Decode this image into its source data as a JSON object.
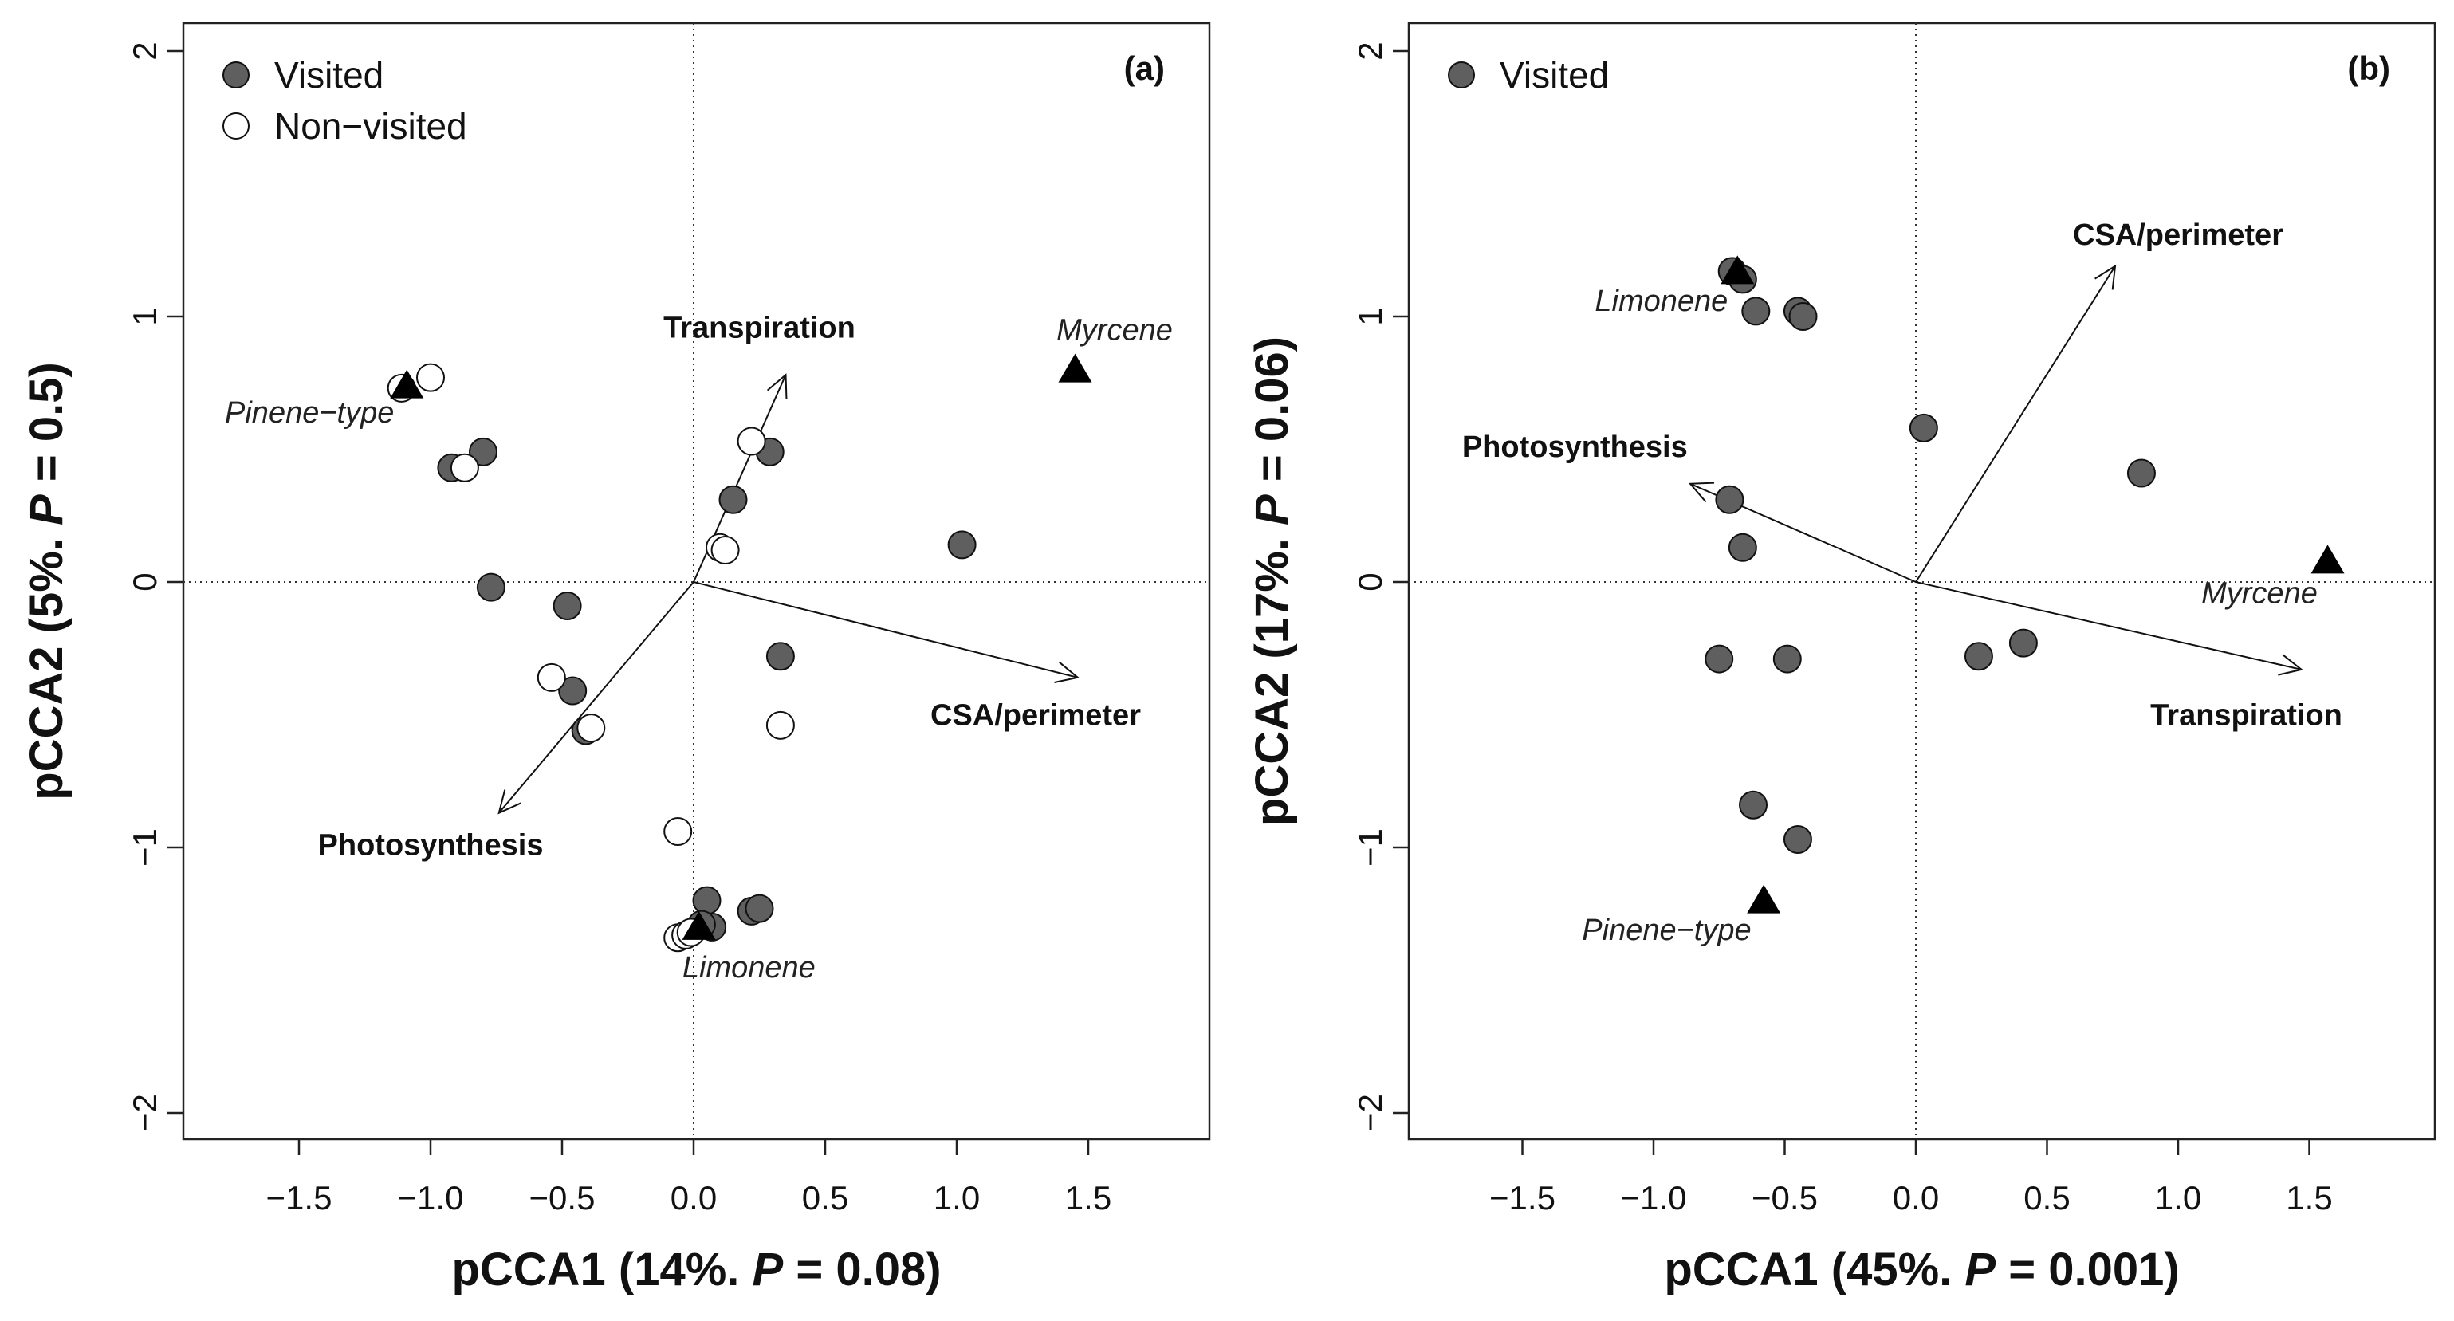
{
  "chart_data": [
    {
      "type": "scatter",
      "panel_label": "(a)",
      "xlabel_prefix": "pCCA1 (14%. ",
      "xlabel_p": "P",
      "xlabel_suffix": " = 0.08)",
      "ylabel_prefix": "pCCA2 (5%. ",
      "ylabel_p": "P",
      "ylabel_suffix": " = 0.5)",
      "xlim": [
        -1.95,
        1.95
      ],
      "ylim": [
        -2.1,
        2.1
      ],
      "xticks": [
        "-1.5",
        "-1.0",
        "-0.5",
        "0.0",
        "0.5",
        "1.0",
        "1.5"
      ],
      "xtick_values": [
        -1.5,
        -1.0,
        -0.5,
        0,
        0.5,
        1.0,
        1.5
      ],
      "yticks": [
        "-2",
        "-1",
        "0",
        "1",
        "2"
      ],
      "ytick_values": [
        -2,
        -1,
        0,
        1,
        2
      ],
      "legend": [
        {
          "label": "Visited",
          "fill": "#5f5f5f"
        },
        {
          "label": "Non−visited",
          "fill": "#ffffff"
        }
      ],
      "legend_position": "top-left",
      "series": [
        {
          "name": "Visited",
          "fill": "#5f5f5f",
          "points": [
            [
              -0.8,
              0.49
            ],
            [
              -0.92,
              0.43
            ],
            [
              -0.77,
              -0.02
            ],
            [
              -0.48,
              -0.09
            ],
            [
              -0.46,
              -0.41
            ],
            [
              -0.41,
              -0.56
            ],
            [
              0.29,
              0.49
            ],
            [
              0.15,
              0.31
            ],
            [
              1.02,
              0.14
            ],
            [
              0.33,
              -0.28
            ],
            [
              0.05,
              -1.2
            ],
            [
              0.22,
              -1.24
            ],
            [
              0.25,
              -1.23
            ],
            [
              0.07,
              -1.3
            ],
            [
              0.03,
              -1.29
            ]
          ]
        },
        {
          "name": "Non-visited",
          "fill": "#ffffff",
          "points": [
            [
              -1.0,
              0.77
            ],
            [
              -1.11,
              0.73
            ],
            [
              -0.87,
              0.43
            ],
            [
              0.22,
              0.53
            ],
            [
              0.1,
              0.13
            ],
            [
              0.12,
              0.12
            ],
            [
              -0.54,
              -0.36
            ],
            [
              -0.39,
              -0.55
            ],
            [
              0.33,
              -0.54
            ],
            [
              -0.06,
              -0.94
            ],
            [
              -0.06,
              -1.34
            ],
            [
              -0.03,
              -1.33
            ],
            [
              -0.01,
              -1.32
            ]
          ]
        }
      ],
      "species": [
        {
          "name": "Pinene−type",
          "x": -1.09,
          "y": 0.74,
          "label_x": -1.46,
          "label_y": 0.64
        },
        {
          "name": "Myrcene",
          "x": 1.45,
          "y": 0.8,
          "label_x": 1.6,
          "label_y": 0.95
        },
        {
          "name": "Limonene",
          "x": 0.02,
          "y": -1.3,
          "label_x": 0.21,
          "label_y": -1.45
        }
      ],
      "vectors": [
        {
          "name": "Transpiration",
          "x": 0.35,
          "y": 0.78,
          "label_x": 0.25,
          "label_y": 0.96
        },
        {
          "name": "CSA/perimeter",
          "x": 1.46,
          "y": -0.36,
          "label_x": 1.3,
          "label_y": -0.5
        },
        {
          "name": "Photosynthesis",
          "x": -0.74,
          "y": -0.87,
          "label_x": -1.0,
          "label_y": -0.99
        }
      ]
    },
    {
      "type": "scatter",
      "panel_label": "(b)",
      "xlabel_prefix": "pCCA1 (45%. ",
      "xlabel_p": "P",
      "xlabel_suffix": " = 0.001)",
      "ylabel_prefix": "pCCA2 (17%. ",
      "ylabel_p": "P",
      "ylabel_suffix": " = 0.06)",
      "xlim": [
        -1.95,
        1.95
      ],
      "ylim": [
        -2.1,
        2.1
      ],
      "xticks": [
        "-1.5",
        "-1.0",
        "-0.5",
        "0.0",
        "0.5",
        "1.0",
        "1.5"
      ],
      "xtick_values": [
        -1.5,
        -1.0,
        -0.5,
        0,
        0.5,
        1.0,
        1.5
      ],
      "yticks": [
        "-2",
        "-1",
        "0",
        "1",
        "2"
      ],
      "ytick_values": [
        -2,
        -1,
        0,
        1,
        2
      ],
      "legend": [
        {
          "label": "Visited",
          "fill": "#5f5f5f"
        }
      ],
      "legend_position": "top-left",
      "series": [
        {
          "name": "Visited",
          "fill": "#5f5f5f",
          "points": [
            [
              -0.7,
              1.17
            ],
            [
              -0.66,
              1.14
            ],
            [
              -0.61,
              1.02
            ],
            [
              -0.45,
              1.02
            ],
            [
              -0.43,
              1.0
            ],
            [
              0.03,
              0.58
            ],
            [
              0.86,
              0.41
            ],
            [
              -0.71,
              0.31
            ],
            [
              -0.66,
              0.13
            ],
            [
              -0.75,
              -0.29
            ],
            [
              -0.49,
              -0.29
            ],
            [
              0.24,
              -0.28
            ],
            [
              0.41,
              -0.23
            ],
            [
              -0.62,
              -0.84
            ],
            [
              -0.45,
              -0.97
            ]
          ]
        }
      ],
      "species": [
        {
          "name": "Limonene",
          "x": -0.68,
          "y": 1.17,
          "label_x": -0.97,
          "label_y": 1.06
        },
        {
          "name": "Myrcene",
          "x": 1.57,
          "y": 0.08,
          "label_x": 1.31,
          "label_y": -0.04
        },
        {
          "name": "Pinene−type",
          "x": -0.58,
          "y": -1.2,
          "label_x": -0.95,
          "label_y": -1.31
        }
      ],
      "vectors": [
        {
          "name": "CSA/perimeter",
          "x": 0.76,
          "y": 1.19,
          "label_x": 1.0,
          "label_y": 1.31
        },
        {
          "name": "Photosynthesis",
          "x": -0.86,
          "y": 0.37,
          "label_x": -1.3,
          "label_y": 0.51
        },
        {
          "name": "Transpiration",
          "x": 1.47,
          "y": -0.33,
          "label_x": 1.26,
          "label_y": -0.5
        }
      ]
    }
  ]
}
